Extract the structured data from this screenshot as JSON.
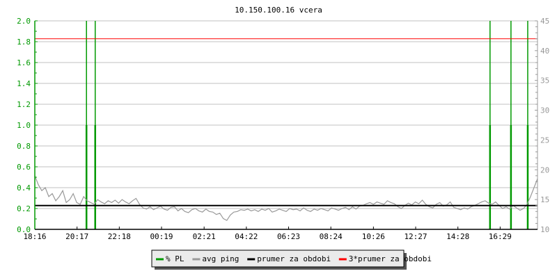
{
  "chart_data": {
    "type": "line",
    "title": "10.150.100.16 vcera",
    "x_tick_labels": [
      "18:16",
      "20:17",
      "22:18",
      "00:19",
      "02:21",
      "04:22",
      "06:23",
      "08:24",
      "10:26",
      "12:27",
      "14:28",
      "16:29"
    ],
    "x_start": "18:16",
    "x_step_minutes": 10,
    "y_left": {
      "range": [
        0,
        2.0
      ],
      "ticks": [
        "0.0",
        "0.2",
        "0.4",
        "0.6",
        "0.8",
        "1.0",
        "1.2",
        "1.4",
        "1.6",
        "1.8",
        "2.0"
      ],
      "color": "#009900"
    },
    "y_right": {
      "range": [
        10,
        45
      ],
      "ticks": [
        "10",
        "15",
        "20",
        "25",
        "30",
        "35",
        "40",
        "45"
      ],
      "color": "#999999"
    },
    "grid": true,
    "legend_placement": "bottom",
    "series": [
      {
        "name": "% PL",
        "color": "#009900",
        "axis": "left",
        "events": [
          {
            "time": "20:44",
            "value": 2.0
          },
          {
            "time": "21:09",
            "value": 2.0
          },
          {
            "time": "16:00",
            "value": 2.0
          },
          {
            "time": "17:00",
            "value": 2.0
          },
          {
            "time": "17:48",
            "value": 2.0
          }
        ]
      },
      {
        "name": "avg ping",
        "color": "#999999",
        "axis": "right",
        "values": [
          19,
          17.5,
          16.5,
          17,
          15.5,
          16,
          14.8,
          15.5,
          16.5,
          14.5,
          15,
          16,
          14.5,
          14.2,
          15.5,
          14.8,
          14.5,
          14.2,
          15,
          14.6,
          14.3,
          14.8,
          14.5,
          14.9,
          14.4,
          15,
          14.6,
          14.3,
          14.8,
          15.2,
          14.2,
          13.6,
          13.4,
          13.8,
          13.3,
          13.6,
          13.9,
          13.4,
          13.2,
          13.7,
          13.8,
          13.1,
          13.5,
          13.0,
          12.8,
          13.3,
          13.5,
          13.1,
          12.9,
          13.4,
          13.0,
          12.9,
          12.5,
          12.7,
          11.8,
          11.5,
          12.4,
          12.9,
          13.0,
          13.3,
          13.2,
          13.4,
          13.1,
          13.3,
          13.0,
          13.4,
          13.2,
          13.5,
          12.9,
          13.1,
          13.4,
          13.2,
          13.0,
          13.5,
          13.3,
          13.4,
          13.1,
          13.6,
          13.2,
          13.0,
          13.4,
          13.2,
          13.5,
          13.3,
          13.1,
          13.6,
          13.4,
          13.2,
          13.5,
          13.7,
          13.3,
          13.8,
          13.4,
          13.9,
          14.0,
          14.3,
          14.5,
          14.2,
          14.6,
          14.4,
          14.2,
          14.8,
          14.5,
          14.3,
          13.8,
          13.5,
          14.0,
          14.4,
          14.1,
          14.6,
          14.3,
          14.9,
          14.2,
          13.8,
          13.6,
          14.2,
          14.5,
          13.9,
          14.1,
          14.6,
          13.7,
          13.5,
          13.3,
          13.6,
          13.4,
          13.8,
          14.0,
          14.3,
          14.6,
          14.8,
          14.4,
          14.2,
          14.6,
          14.0,
          13.5,
          13.8,
          13.4,
          14.0,
          13.6,
          13.2,
          13.5,
          14.2,
          15.5,
          17.0,
          18.5
        ]
      },
      {
        "name": "prumer za obdobi",
        "color": "#000000",
        "axis": "right",
        "value": 14.0
      },
      {
        "name": "3*prumer za obdobi",
        "color": "#ff0000",
        "axis": "right",
        "value": 42.0
      }
    ]
  }
}
